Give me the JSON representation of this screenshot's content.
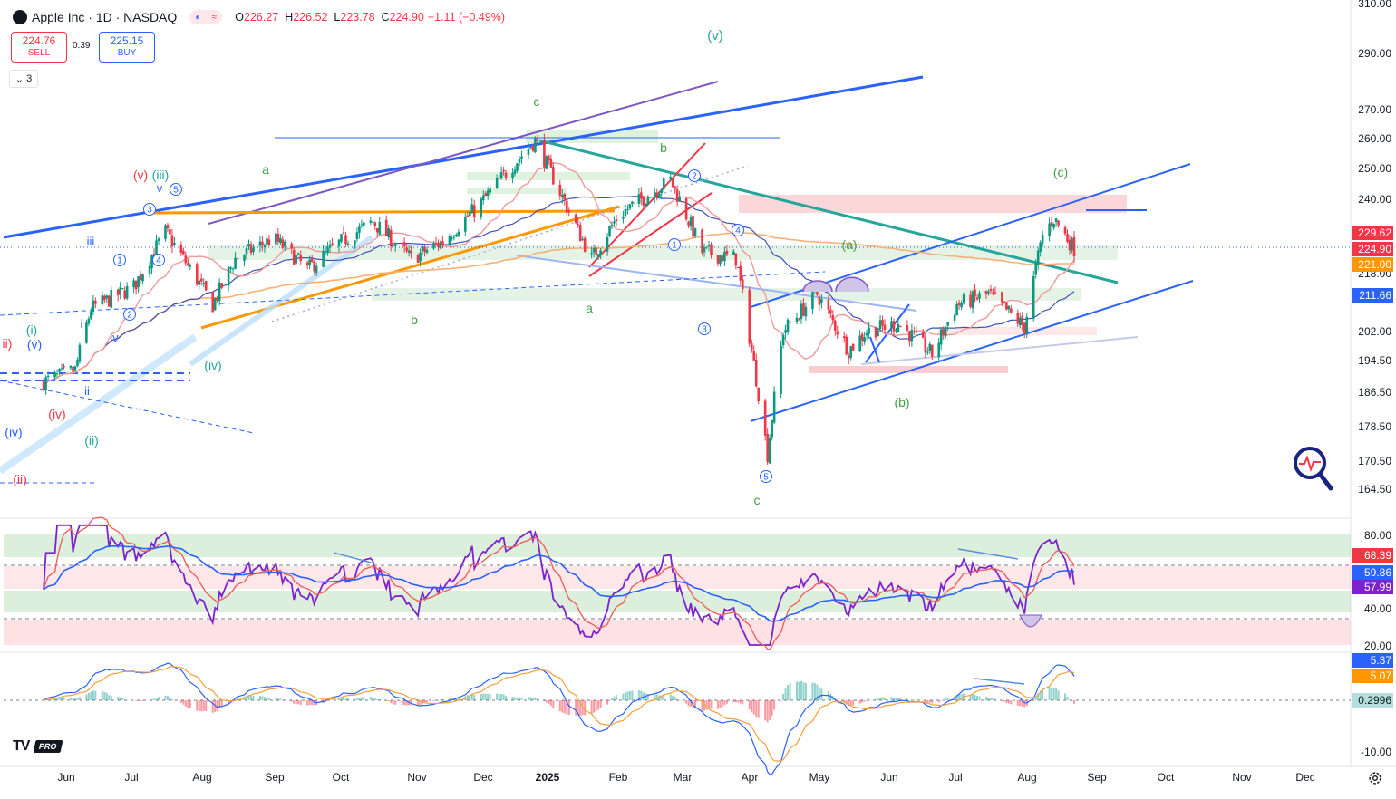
{
  "header": {
    "symbol": "Apple Inc · 1D · NASDAQ",
    "open_label": "O",
    "open": "226.27",
    "high_label": "H",
    "high": "226.52",
    "low_label": "L",
    "low": "223.78",
    "close_label": "C",
    "close": "224.90",
    "change": "−1.11 (−0.49%)"
  },
  "trade": {
    "sell_price": "224.76",
    "sell_label": "SELL",
    "spread": "0.39",
    "buy_price": "225.15",
    "buy_label": "BUY"
  },
  "collapse_count": "3",
  "branding": {
    "tv": "TV",
    "pro": "PRO"
  },
  "colors": {
    "up": "#089981",
    "down": "#f23645",
    "rsi": "#7e22ce",
    "blue": "#2962ff",
    "orange": "#f59f3a"
  },
  "chart_data": [
    {
      "type": "candlestick",
      "title": "Apple Inc · 1D · NASDAQ",
      "y_axis_scale": "log",
      "y_ticks": [
        "310.00",
        "290.00",
        "270.00",
        "260.00",
        "250.00",
        "240.00",
        "218.00",
        "202.00",
        "194.50",
        "186.50",
        "178.50",
        "170.50",
        "164.50"
      ],
      "x_ticks": [
        "Jun",
        "Jul",
        "Aug",
        "Sep",
        "Oct",
        "Nov",
        "Dec",
        "2025",
        "Feb",
        "Mar",
        "Apr",
        "May",
        "Jun",
        "Jul",
        "Aug",
        "Sep",
        "Oct",
        "Nov",
        "Dec"
      ],
      "price_tags": [
        {
          "label": "229.62",
          "color": "#f23645"
        },
        {
          "label": "224.90",
          "color": "#f23645"
        },
        {
          "label": "221.00",
          "color": "#ff9800"
        },
        {
          "label": "211.66",
          "color": "#2962ff"
        }
      ],
      "close_series": {
        "dates": [
          "2024-05-22",
          "2024-06-05",
          "2024-06-12",
          "2024-07-01",
          "2024-07-15",
          "2024-08-05",
          "2024-08-15",
          "2024-09-01",
          "2024-09-16",
          "2024-10-01",
          "2024-10-15",
          "2024-11-01",
          "2024-11-15",
          "2024-12-01",
          "2024-12-15",
          "2024-12-26",
          "2025-01-10",
          "2025-01-20",
          "2025-02-01",
          "2025-02-24",
          "2025-03-10",
          "2025-03-25",
          "2025-04-08",
          "2025-04-15",
          "2025-04-30",
          "2025-05-14",
          "2025-05-22",
          "2025-06-05",
          "2025-06-20",
          "2025-07-01",
          "2025-07-15",
          "2025-07-31",
          "2025-08-08",
          "2025-08-13",
          "2025-08-22"
        ],
        "values": [
          189,
          192,
          208,
          214,
          230,
          209,
          222,
          228,
          219,
          227,
          233,
          222,
          227,
          238,
          250,
          259,
          236,
          222,
          235,
          246,
          224,
          222,
          172,
          202,
          212,
          197,
          202,
          204,
          196,
          209,
          212,
          203,
          229,
          234,
          224.9
        ]
      },
      "annotations": [
        "(v)",
        "c",
        "a",
        "b",
        "a",
        "b",
        "c",
        "(v)(iii)",
        "v",
        "iii",
        "i",
        "iv",
        "ii",
        "(i)",
        "(v)",
        "(iv)",
        "(ii)",
        "(iv)",
        "(iv)",
        "(ii)",
        "(iii)",
        "(a)",
        "(b)",
        "(c)",
        "1",
        "2",
        "3",
        "4",
        "5",
        "1",
        "2",
        "3",
        "4",
        "5",
        "iii",
        "ii"
      ]
    },
    {
      "type": "line",
      "title": "",
      "y_ticks": [
        "80.00",
        "40.00",
        "20.00"
      ],
      "price_tags": [
        {
          "label": "68.39",
          "color": "#f23645"
        },
        {
          "label": "59.86",
          "color": "#2962ff"
        },
        {
          "label": "57.99",
          "color": "#7e22ce"
        }
      ],
      "series_last": [
        68.39,
        59.86,
        57.99
      ]
    },
    {
      "type": "line",
      "title": "",
      "y_ticks": [
        "-10.00"
      ],
      "price_tags": [
        {
          "label": "5.37",
          "color": "#2962ff"
        },
        {
          "label": "5.07",
          "color": "#ff9800"
        },
        {
          "label": "0.2996",
          "color": "#b2dfdb"
        }
      ],
      "series_last": [
        5.37,
        5.07,
        0.2996
      ]
    }
  ]
}
